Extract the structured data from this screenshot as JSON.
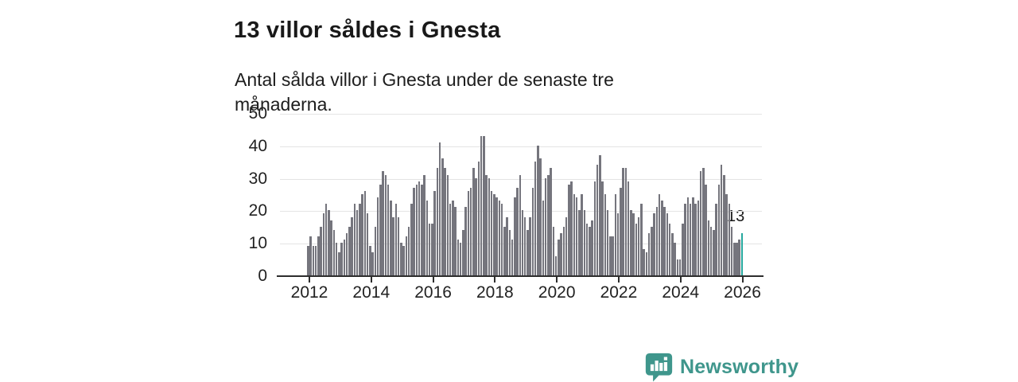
{
  "header": {
    "title": "13 villor såldes i Gnesta",
    "subtitle": "Antal sålda villor i Gnesta under de senaste tre månaderna."
  },
  "chart_data": {
    "type": "bar",
    "title": "13 villor såldes i Gnesta",
    "subtitle": "Antal sålda villor i Gnesta under de senaste tre månaderna.",
    "xlabel": "",
    "ylabel": "",
    "frequency": "monthly",
    "x_start": "2012-01",
    "x_end": "2026-01",
    "x_tick_labels": [
      "2012",
      "2014",
      "2016",
      "2018",
      "2020",
      "2022",
      "2024",
      "2026"
    ],
    "y_ticks": [
      0,
      10,
      20,
      30,
      40,
      50
    ],
    "ylim": [
      0,
      50
    ],
    "grid": "horizontal",
    "legend": "none",
    "bar_color": "#75757d",
    "highlight_color": "#26a89e",
    "highlight_index": 168,
    "highlight_label": "13",
    "values": [
      9,
      12,
      9,
      9,
      12,
      15,
      19,
      22,
      20,
      17,
      14,
      10,
      7,
      10,
      11,
      13,
      15,
      18,
      22,
      20,
      22,
      25,
      26,
      19,
      9,
      7,
      15,
      24,
      28,
      32,
      31,
      28,
      23,
      18,
      22,
      18,
      10,
      9,
      12,
      15,
      22,
      27,
      28,
      29,
      28,
      31,
      23,
      16,
      16,
      26,
      33,
      41,
      36,
      33,
      31,
      22,
      23,
      21,
      11,
      10,
      14,
      21,
      26,
      27,
      33,
      30,
      35,
      43,
      43,
      31,
      30,
      26,
      25,
      24,
      23,
      22,
      15,
      18,
      14,
      11,
      24,
      27,
      31,
      20,
      18,
      14,
      18,
      27,
      35,
      40,
      36,
      23,
      30,
      31,
      33,
      15,
      6,
      11,
      13,
      15,
      18,
      28,
      29,
      25,
      24,
      20,
      25,
      20,
      16,
      15,
      17,
      29,
      34,
      37,
      29,
      25,
      20,
      12,
      12,
      25,
      19,
      27,
      33,
      33,
      29,
      20,
      19,
      16,
      18,
      22,
      8,
      7,
      13,
      15,
      19,
      21,
      25,
      23,
      21,
      19,
      16,
      13,
      10,
      5,
      5,
      16,
      22,
      24,
      22,
      24,
      22,
      23,
      32,
      33,
      28,
      17,
      15,
      14,
      22,
      28,
      34,
      31,
      25,
      22,
      15,
      10,
      10,
      11,
      13
    ]
  },
  "branding": {
    "logo_text": "Newsworthy",
    "logo_icon": "bar-chart-speech-bubble-icon",
    "logo_color": "#3f968c"
  }
}
